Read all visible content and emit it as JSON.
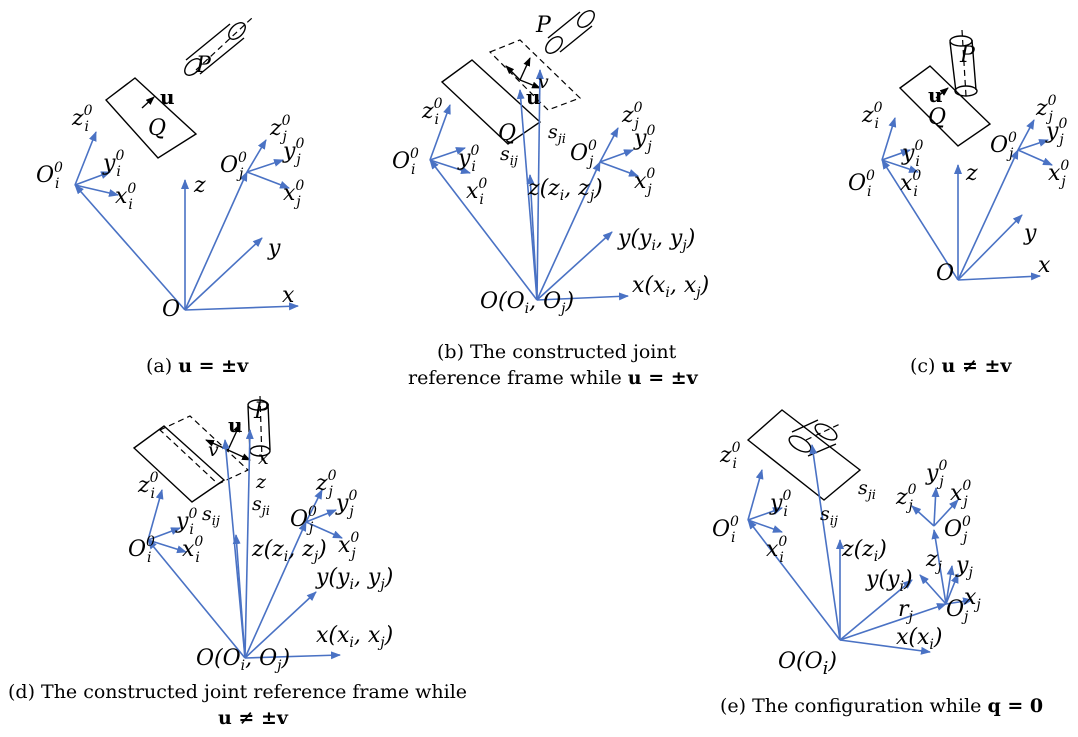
{
  "panels": {
    "a": {
      "caption_prefix": "(a) ",
      "caption_math": "u = ±v",
      "labels": {
        "P": "P",
        "Q": "Q",
        "u": "u",
        "zi": "z",
        "yi": "y",
        "xi": "x",
        "Oi": "O",
        "zj": "z",
        "yj": "y",
        "xj": "x",
        "Oj": "O",
        "z": "z",
        "y": "y",
        "x": "x",
        "O": "O"
      }
    },
    "b": {
      "caption_line1": "(b) The constructed joint",
      "caption_line2": "reference frame while ",
      "caption_math": "u = ±v",
      "labels": {
        "P": "P",
        "Q": "Q",
        "u": "u",
        "v": "v",
        "sij": "s",
        "sji": "s",
        "zi": "z",
        "yi": "y",
        "xi": "x",
        "Oi": "O",
        "zj": "z",
        "yj": "y",
        "xj": "x",
        "Oj": "O",
        "z": "z(z",
        "y": "y(y",
        "x": "x(x",
        "O": "O(O"
      }
    },
    "c": {
      "caption_prefix": "(c) ",
      "caption_math": "u ≠ ±v",
      "labels": {
        "P": "P",
        "Q": "Q",
        "u": "u",
        "zi": "z",
        "yi": "y",
        "xi": "x",
        "Oi": "O",
        "zj": "z",
        "yj": "y",
        "xj": "x",
        "Oj": "O",
        "z": "z",
        "y": "y",
        "x": "x",
        "O": "O"
      }
    },
    "d": {
      "caption_line1": "(d) The constructed joint reference frame while",
      "caption_math": "u ≠ ±v",
      "labels": {
        "P": "P",
        "u": "u",
        "v": "v",
        "z": "z",
        "x": "x",
        "sij": "s",
        "sji": "s",
        "zi": "z",
        "yi": "y",
        "xi": "x",
        "Oi": "O",
        "zj": "z",
        "yj": "y",
        "xj": "x",
        "Oj": "O",
        "zm": "z(z",
        "ym": "y(y",
        "xm": "x(x",
        "Om": "O(O"
      }
    },
    "e": {
      "caption_prefix": "(e) The configuration while ",
      "caption_math": "q = 0",
      "labels": {
        "zi": "z",
        "yi": "y",
        "xi": "x",
        "Oi": "O",
        "sij": "s",
        "sji": "s",
        "zj": "z",
        "yj": "y",
        "xj": "x",
        "Oj": "O",
        "z": "z(z",
        "y": "y(y",
        "x": "x(x",
        "O": "O(O",
        "rj": "r",
        "zj2": "z",
        "yj2": "y",
        "xj2": "x",
        "Oj2": "O"
      }
    }
  }
}
